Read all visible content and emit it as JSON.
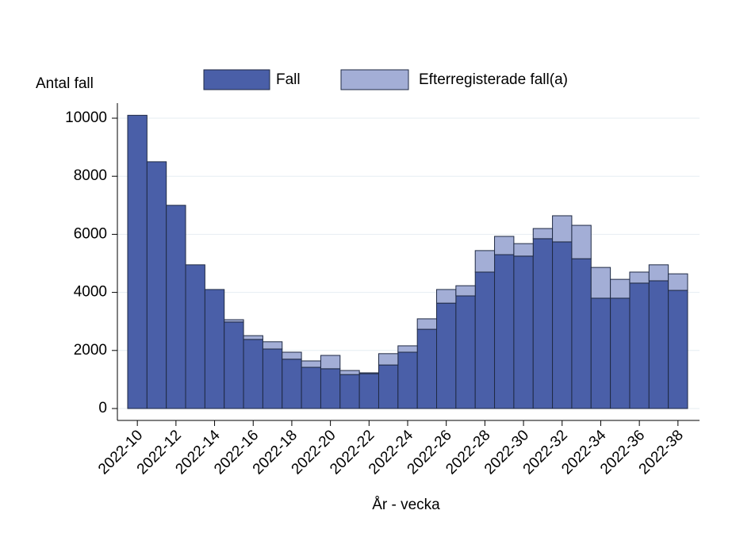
{
  "chart_data": {
    "type": "stacked_bar",
    "y_label": "Antal fall",
    "x_label": "År - vecka",
    "categories": [
      "2022-10",
      null,
      "2022-12",
      null,
      "2022-14",
      null,
      "2022-16",
      null,
      "2022-18",
      null,
      "2022-20",
      null,
      "2022-22",
      null,
      "2022-24",
      null,
      "2022-26",
      null,
      "2022-28",
      null,
      "2022-30",
      null,
      "2022-32",
      null,
      "2022-34",
      null,
      "2022-36",
      null,
      "2022-38"
    ],
    "series": [
      {
        "name": "Fall",
        "color": "#4a5fa8",
        "values": [
          10100,
          8500,
          7000,
          4950,
          4100,
          2980,
          2380,
          2050,
          1700,
          1420,
          1370,
          1170,
          1200,
          1500,
          1940,
          2730,
          3630,
          3880,
          4700,
          5300,
          5250,
          5850,
          5740,
          5160,
          3800,
          3800,
          4320,
          4400,
          4070
        ]
      },
      {
        "name": "Efterregisterade fall(a)",
        "color": "#a3aed6",
        "values": [
          0,
          0,
          0,
          0,
          0,
          80,
          130,
          250,
          240,
          220,
          460,
          140,
          30,
          390,
          220,
          360,
          470,
          350,
          740,
          630,
          430,
          350,
          900,
          1150,
          1060,
          650,
          380,
          550,
          570
        ]
      }
    ],
    "ylim": [
      0,
      10000
    ],
    "yticks": [
      0,
      2000,
      4000,
      6000,
      8000,
      10000
    ],
    "grid": true
  }
}
